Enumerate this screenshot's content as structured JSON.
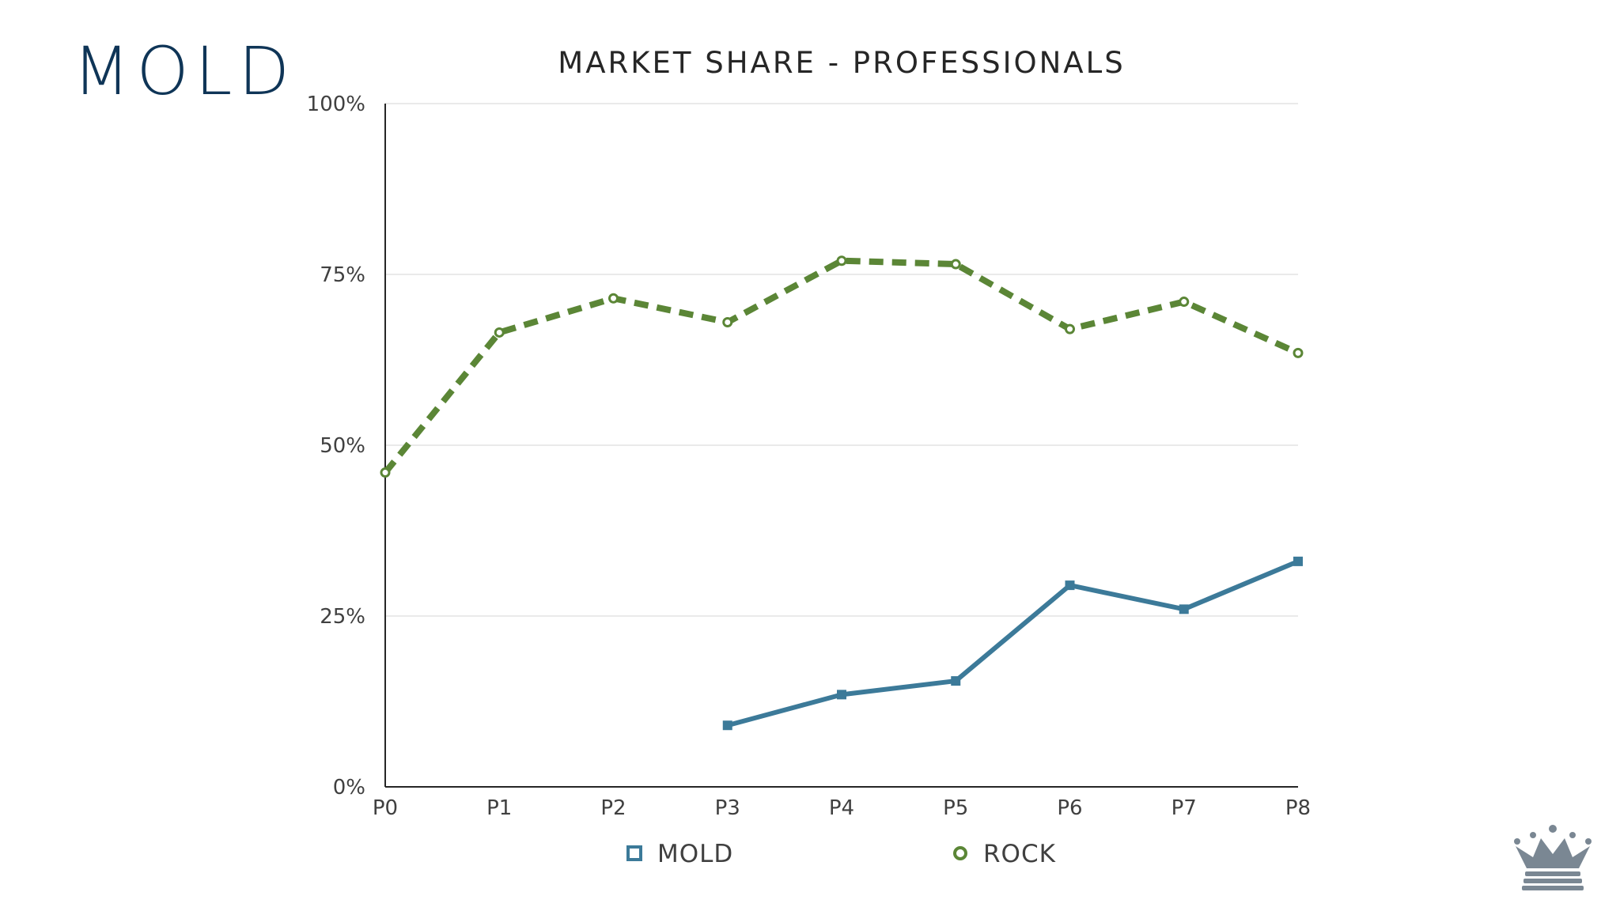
{
  "slide": {
    "brand_title": "MOLD"
  },
  "chart_data": {
    "type": "line",
    "title": "MARKET SHARE - PROFESSIONALS",
    "xlabel": "",
    "ylabel": "",
    "categories": [
      "P0",
      "P1",
      "P2",
      "P3",
      "P4",
      "P5",
      "P6",
      "P7",
      "P8"
    ],
    "ylim": [
      0,
      100
    ],
    "yticks": [
      0,
      25,
      50,
      75,
      100
    ],
    "ytick_labels": [
      "0%",
      "25%",
      "50%",
      "75%",
      "100%"
    ],
    "grid": true,
    "legend_position": "bottom",
    "series": [
      {
        "name": "MOLD",
        "color": "#3c7a99",
        "style": "solid",
        "marker": "square",
        "values": [
          null,
          null,
          null,
          9,
          13.5,
          15.5,
          29.5,
          26,
          33
        ]
      },
      {
        "name": "ROCK",
        "color": "#5b8636",
        "style": "dashed",
        "marker": "circle",
        "values": [
          46,
          66.5,
          71.5,
          68,
          77,
          76.5,
          67,
          71,
          63.5
        ]
      }
    ]
  },
  "logo": {
    "icon": "crown-icon"
  }
}
